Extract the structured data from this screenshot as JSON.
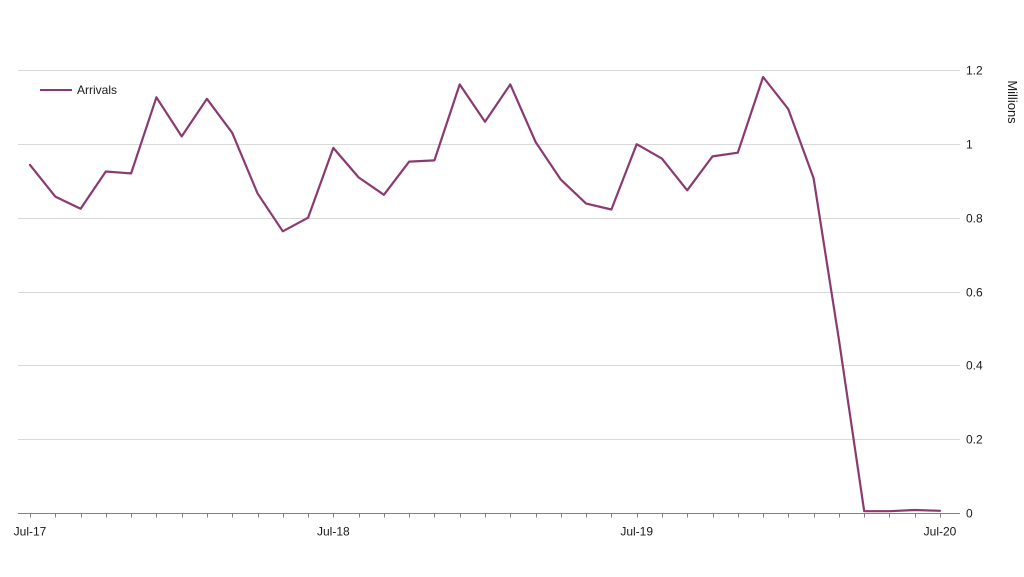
{
  "chart_data": {
    "type": "line",
    "title": "",
    "xlabel": "",
    "ylabel": "Millions",
    "ylim": [
      0,
      1.2
    ],
    "y_ticks": [
      0,
      0.2,
      0.4,
      0.6,
      0.8,
      1,
      1.2
    ],
    "y_tick_labels": [
      "0",
      "0.2",
      "0.4",
      "0.6",
      "0.8",
      "1",
      "1.2"
    ],
    "x_tick_labels": [
      {
        "label": "Jul-17",
        "index": 0
      },
      {
        "label": "Jul-18",
        "index": 12
      },
      {
        "label": "Jul-19",
        "index": 24
      },
      {
        "label": "Jul-20",
        "index": 36
      }
    ],
    "x": [
      "Jul-17",
      "Aug-17",
      "Sep-17",
      "Oct-17",
      "Nov-17",
      "Dec-17",
      "Jan-18",
      "Feb-18",
      "Mar-18",
      "Apr-18",
      "May-18",
      "Jun-18",
      "Jul-18",
      "Aug-18",
      "Sep-18",
      "Oct-18",
      "Nov-18",
      "Dec-18",
      "Jan-19",
      "Feb-19",
      "Mar-19",
      "Apr-19",
      "May-19",
      "Jun-19",
      "Jul-19",
      "Aug-19",
      "Sep-19",
      "Oct-19",
      "Nov-19",
      "Dec-19",
      "Jan-20",
      "Feb-20",
      "Mar-20",
      "Apr-20",
      "May-20",
      "Jun-20",
      "Jul-20"
    ],
    "series": [
      {
        "name": "Arrivals",
        "color": "#8b3a6f",
        "values": [
          0.943,
          0.857,
          0.824,
          0.925,
          0.92,
          1.126,
          1.02,
          1.122,
          1.03,
          0.866,
          0.763,
          0.8,
          0.989,
          0.909,
          0.862,
          0.952,
          0.955,
          1.161,
          1.06,
          1.161,
          1.005,
          0.903,
          0.838,
          0.822,
          0.999,
          0.96,
          0.874,
          0.966,
          0.976,
          1.181,
          1.094,
          0.907,
          0.47,
          0.005,
          0.005,
          0.008,
          0.006
        ]
      }
    ],
    "legend_position": "top-left",
    "y_axis_side": "right",
    "grid": true
  }
}
